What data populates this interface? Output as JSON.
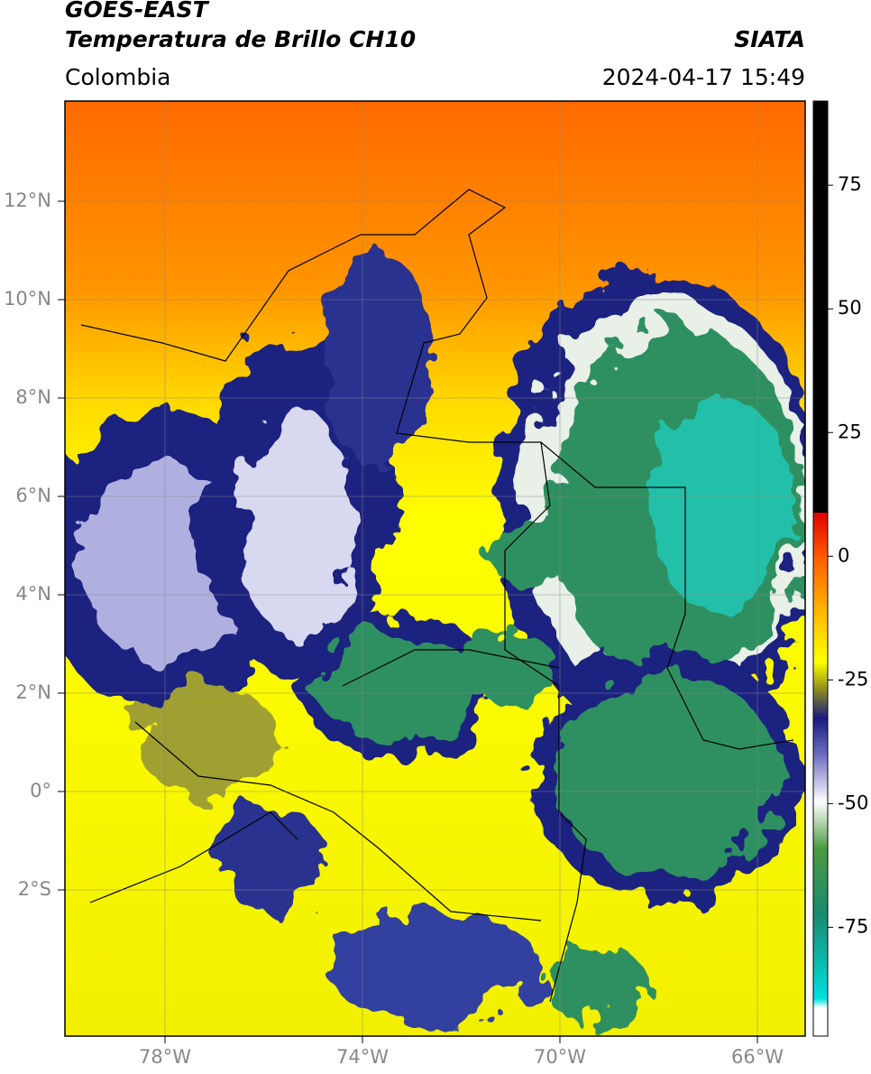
{
  "header": {
    "title_line1": "GOES-EAST",
    "title_line2": "Temperatura de Brillo CH10",
    "region": "Colombia",
    "source": "SIATA",
    "timestamp": "2024-04-17 15:49"
  },
  "map": {
    "lat_labels": [
      "12°N",
      "10°N",
      "8°N",
      "6°N",
      "4°N",
      "2°N",
      "0°",
      "2°S"
    ],
    "lon_labels": [
      "78°W",
      "74°W",
      "70°W",
      "66°W"
    ]
  },
  "colorbar": {
    "lim": [
      -97,
      92
    ],
    "ticks": [
      75,
      50,
      25,
      0,
      -25,
      -50,
      -75
    ]
  }
}
